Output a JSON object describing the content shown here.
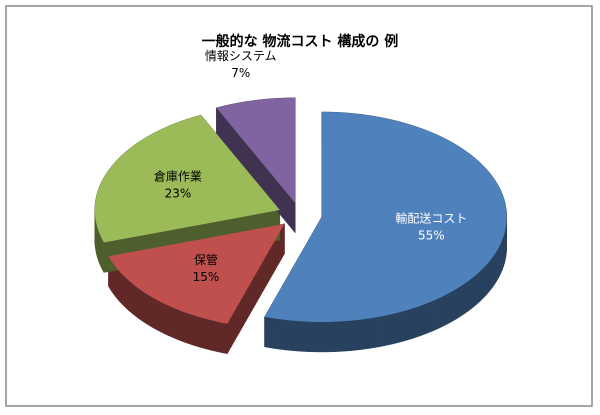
{
  "chart_data": {
    "type": "pie3d",
    "title": "一般的な 物流コスト 構成の 例",
    "categories": [
      "輸配送コスト",
      "保管",
      "倉庫作業",
      "情報システム"
    ],
    "values": [
      55,
      15,
      23,
      7
    ],
    "value_labels": [
      "55%",
      "15%",
      "23%",
      "7%"
    ],
    "colors": [
      "#4f81bd",
      "#c0504d",
      "#9bbb59",
      "#8064a2"
    ]
  }
}
